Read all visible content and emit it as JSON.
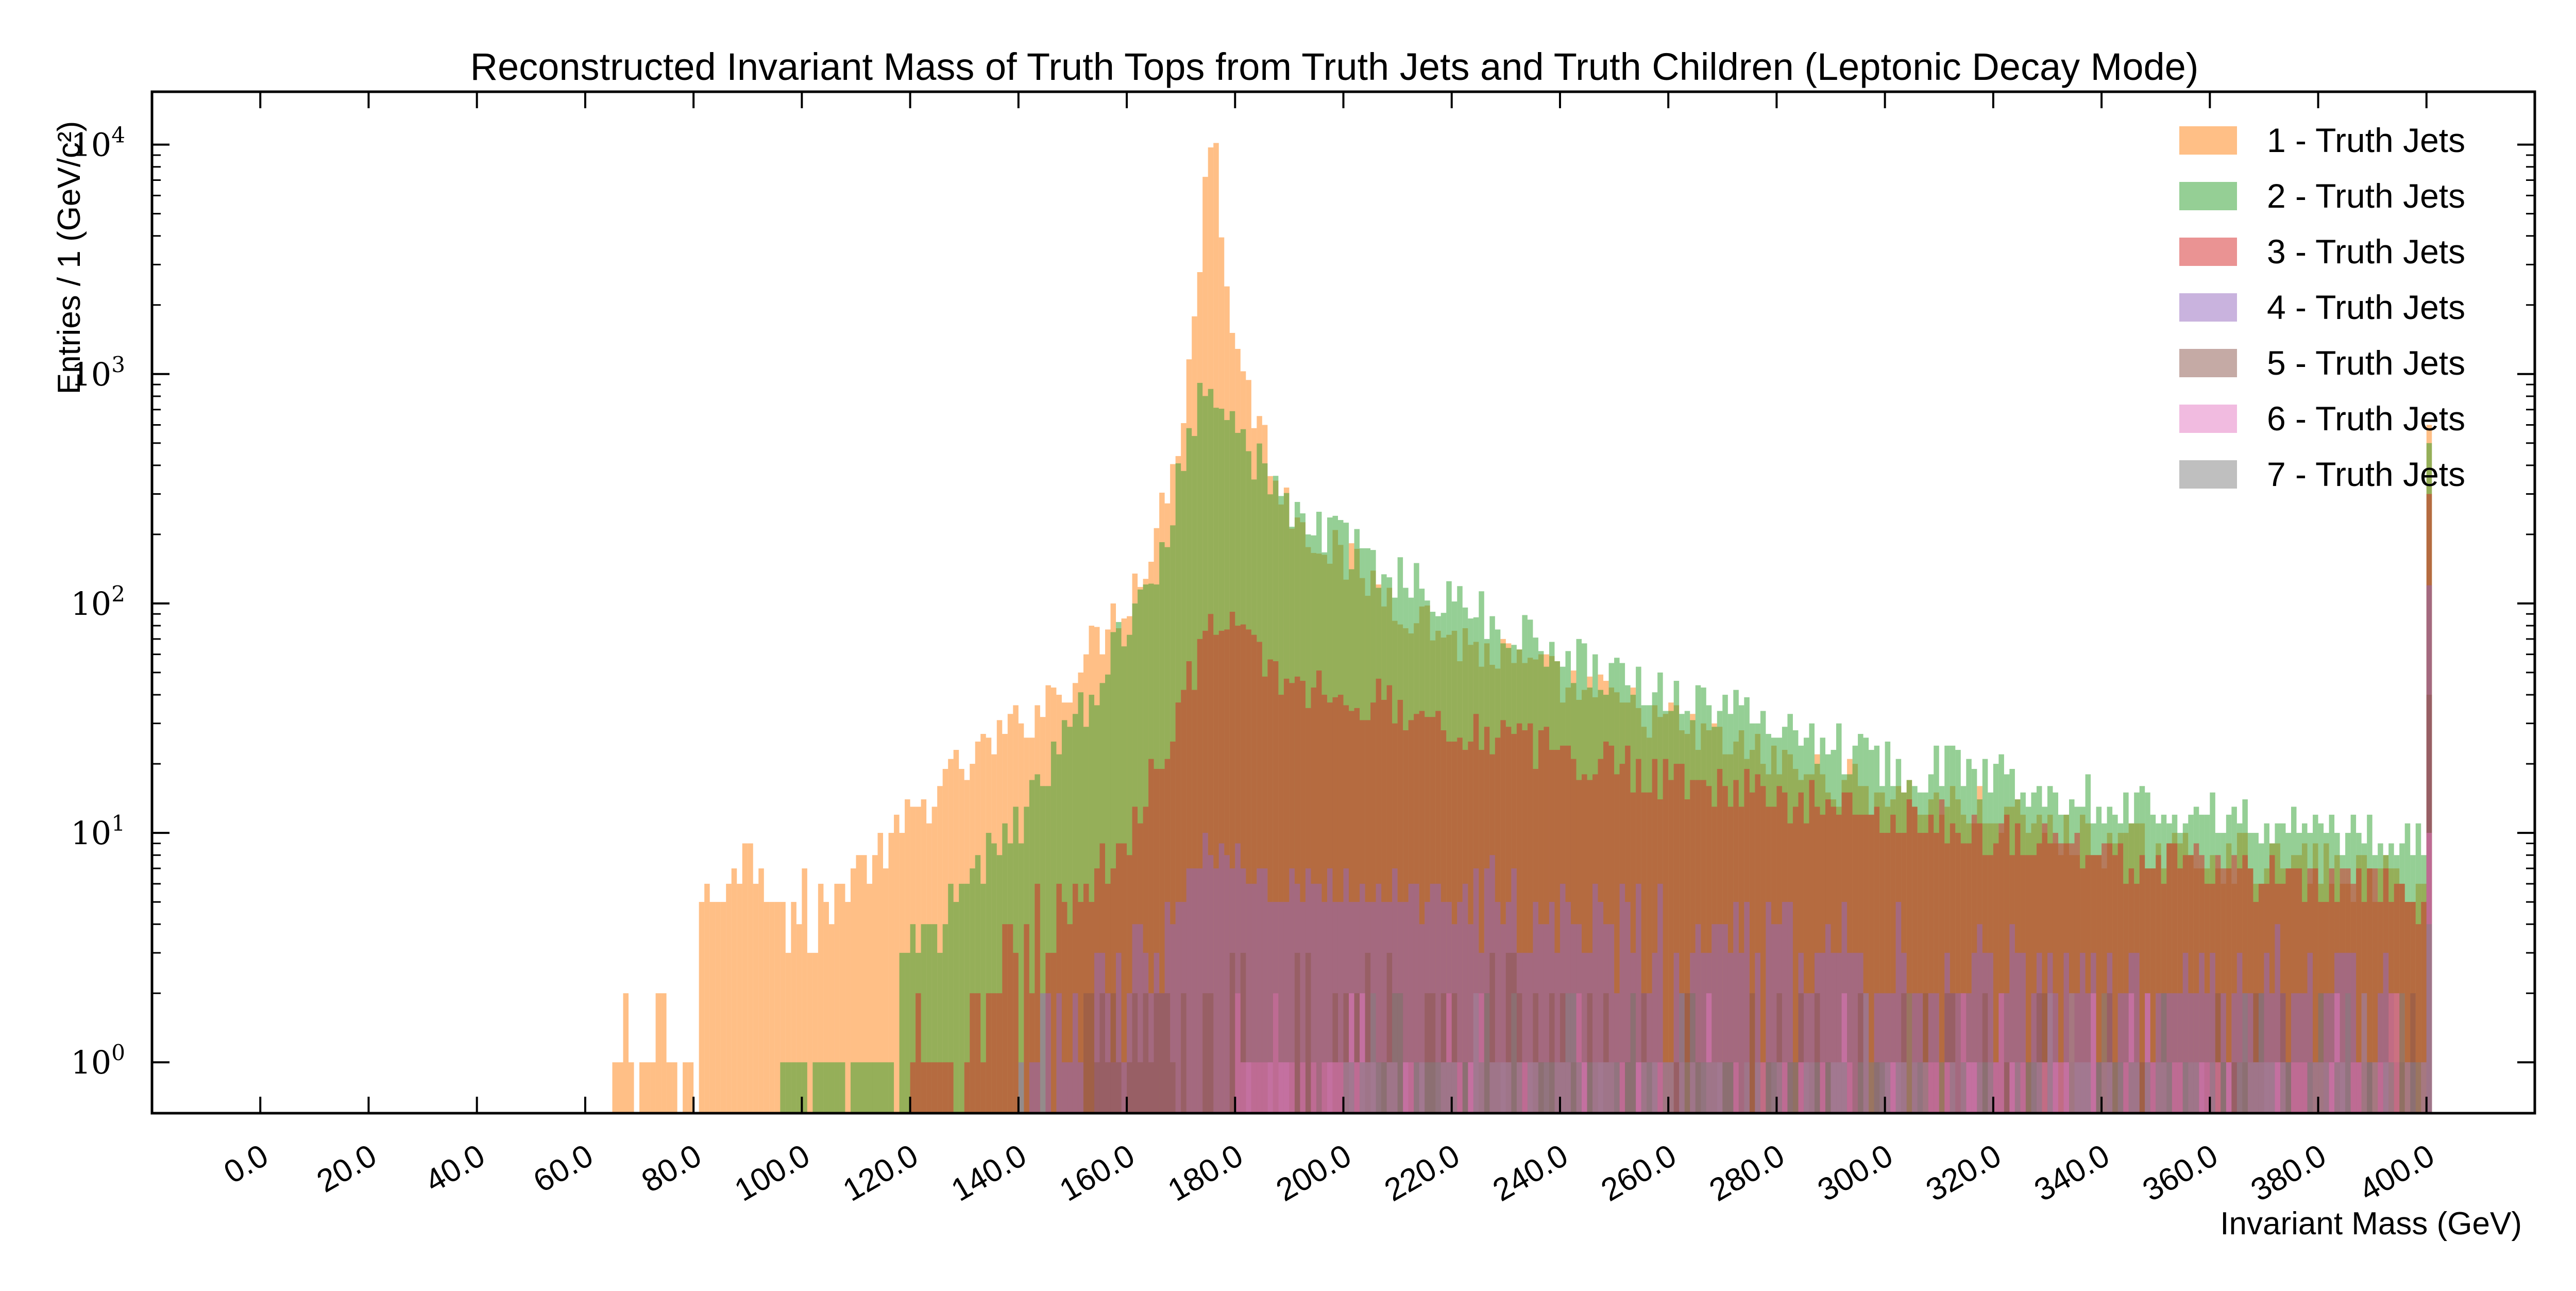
{
  "chart_data": {
    "type": "bar",
    "subtype": "histogram-overlay",
    "title": "Reconstructed Invariant Mass of Truth Tops from Truth Jets and Truth Children (Leptonic Decay Mode)",
    "xlabel": "Invariant Mass (GeV)",
    "ylabel": "Entries / 1 (GeV/c²)",
    "xlim": [
      -20,
      420
    ],
    "ylim": [
      0.6,
      17000
    ],
    "yscale": "log",
    "legend_position": "top-right",
    "x_ticks": [
      "0.0",
      "20.0",
      "40.0",
      "60.0",
      "80.0",
      "100.0",
      "120.0",
      "140.0",
      "160.0",
      "180.0",
      "200.0",
      "220.0",
      "240.0",
      "260.0",
      "280.0",
      "300.0",
      "320.0",
      "340.0",
      "360.0",
      "380.0",
      "400.0"
    ],
    "y_ticks": [
      {
        "base": "10",
        "exp": "0",
        "value": 1
      },
      {
        "base": "10",
        "exp": "1",
        "value": 10
      },
      {
        "base": "10",
        "exp": "2",
        "value": 100
      },
      {
        "base": "10",
        "exp": "3",
        "value": 1000
      },
      {
        "base": "10",
        "exp": "4",
        "value": 10000
      }
    ],
    "bin_width": 1,
    "series": [
      {
        "name": "1 - Truth Jets",
        "color": "#ff7f0e",
        "opacity": 0.5,
        "range": [
          65,
          400
        ],
        "profile": [
          [
            65,
            1
          ],
          [
            80,
            1
          ],
          [
            81,
            5
          ],
          [
            90,
            8
          ],
          [
            100,
            4
          ],
          [
            110,
            7
          ],
          [
            115,
            8
          ],
          [
            120,
            12
          ],
          [
            130,
            20
          ],
          [
            140,
            30
          ],
          [
            150,
            50
          ],
          [
            160,
            110
          ],
          [
            165,
            200
          ],
          [
            170,
            700
          ],
          [
            173,
            3000
          ],
          [
            174,
            7000
          ],
          [
            175,
            11000
          ],
          [
            176,
            9000
          ],
          [
            177,
            4000
          ],
          [
            180,
            1200
          ],
          [
            185,
            500
          ],
          [
            190,
            250
          ],
          [
            200,
            150
          ],
          [
            210,
            100
          ],
          [
            220,
            70
          ],
          [
            240,
            45
          ],
          [
            260,
            30
          ],
          [
            280,
            20
          ],
          [
            300,
            15
          ],
          [
            320,
            12
          ],
          [
            340,
            9
          ],
          [
            360,
            8
          ],
          [
            380,
            7
          ],
          [
            399,
            6
          ],
          [
            400,
            600
          ]
        ]
      },
      {
        "name": "2 - Truth Jets",
        "color": "#2ca02c",
        "opacity": 0.5,
        "range": [
          95,
          400
        ],
        "profile": [
          [
            95,
            1
          ],
          [
            115,
            1
          ],
          [
            118,
            2
          ],
          [
            125,
            3
          ],
          [
            130,
            6
          ],
          [
            140,
            12
          ],
          [
            150,
            30
          ],
          [
            160,
            80
          ],
          [
            165,
            150
          ],
          [
            170,
            400
          ],
          [
            173,
            800
          ],
          [
            175,
            950
          ],
          [
            178,
            800
          ],
          [
            180,
            600
          ],
          [
            185,
            350
          ],
          [
            190,
            250
          ],
          [
            200,
            180
          ],
          [
            210,
            130
          ],
          [
            220,
            100
          ],
          [
            240,
            60
          ],
          [
            260,
            40
          ],
          [
            280,
            30
          ],
          [
            300,
            20
          ],
          [
            320,
            18
          ],
          [
            340,
            14
          ],
          [
            360,
            12
          ],
          [
            380,
            10
          ],
          [
            399,
            10
          ],
          [
            400,
            500
          ]
        ]
      },
      {
        "name": "3 - Truth Jets",
        "color": "#d62728",
        "opacity": 0.5,
        "range": [
          120,
          400
        ],
        "profile": [
          [
            120,
            1
          ],
          [
            130,
            1
          ],
          [
            140,
            3
          ],
          [
            150,
            5
          ],
          [
            160,
            10
          ],
          [
            165,
            20
          ],
          [
            170,
            40
          ],
          [
            175,
            80
          ],
          [
            180,
            75
          ],
          [
            185,
            55
          ],
          [
            190,
            45
          ],
          [
            200,
            40
          ],
          [
            210,
            35
          ],
          [
            220,
            30
          ],
          [
            240,
            22
          ],
          [
            260,
            18
          ],
          [
            280,
            14
          ],
          [
            300,
            12
          ],
          [
            320,
            10
          ],
          [
            340,
            8
          ],
          [
            360,
            7
          ],
          [
            380,
            6
          ],
          [
            399,
            5
          ],
          [
            400,
            300
          ]
        ]
      },
      {
        "name": "4 - Truth Jets",
        "color": "#9467bd",
        "opacity": 0.5,
        "range": [
          140,
          400
        ],
        "profile": [
          [
            140,
            1
          ],
          [
            155,
            2
          ],
          [
            165,
            3
          ],
          [
            170,
            5
          ],
          [
            175,
            9
          ],
          [
            180,
            7
          ],
          [
            190,
            6
          ],
          [
            200,
            6
          ],
          [
            220,
            5
          ],
          [
            240,
            4
          ],
          [
            260,
            3.5
          ],
          [
            280,
            3
          ],
          [
            300,
            3
          ],
          [
            320,
            2.5
          ],
          [
            340,
            2
          ],
          [
            360,
            2
          ],
          [
            380,
            2
          ],
          [
            399,
            2
          ],
          [
            400,
            120
          ]
        ]
      },
      {
        "name": "5 - Truth Jets",
        "color": "#8c564b",
        "opacity": 0.5,
        "range": [
          150,
          400
        ],
        "profile": [
          [
            150,
            1
          ],
          [
            175,
            2
          ],
          [
            200,
            2
          ],
          [
            240,
            1.5
          ],
          [
            280,
            1.5
          ],
          [
            320,
            1.2
          ],
          [
            360,
            1.1
          ],
          [
            399,
            1
          ],
          [
            400,
            40
          ]
        ]
      },
      {
        "name": "6 - Truth Jets",
        "color": "#e377c2",
        "opacity": 0.5,
        "range": [
          180,
          400
        ],
        "profile": [
          [
            180,
            1
          ],
          [
            250,
            1
          ],
          [
            300,
            1
          ],
          [
            350,
            1
          ],
          [
            399,
            1
          ],
          [
            400,
            10
          ]
        ]
      },
      {
        "name": "7 - Truth Jets",
        "color": "#7f7f7f",
        "opacity": 0.5,
        "range": [
          200,
          400
        ],
        "profile": [
          [
            200,
            1
          ],
          [
            300,
            1
          ],
          [
            399,
            1
          ],
          [
            400,
            4
          ]
        ]
      }
    ]
  }
}
